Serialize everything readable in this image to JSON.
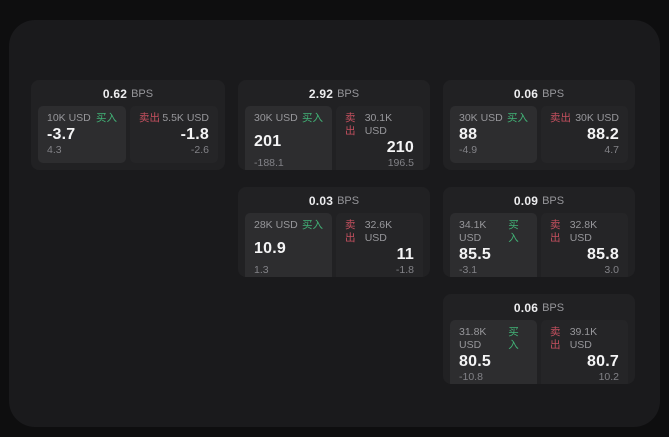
{
  "labels": {
    "bps_unit": "BPS",
    "buy": "买入",
    "sell": "卖出"
  },
  "colors": {
    "buy": "#42b377",
    "sell": "#c5505f",
    "panel_background": "#1a1a1c",
    "card_background": "#212123",
    "page_background": "#0e0e0f"
  },
  "cards": [
    {
      "bps": "0.62",
      "buy": {
        "amount": "10K USD",
        "price": "-3.7",
        "change": "4.3"
      },
      "sell": {
        "amount": "5.5K USD",
        "price": "-1.8",
        "change": "-2.6"
      }
    },
    {
      "bps": "2.92",
      "buy": {
        "amount": "30K USD",
        "price": "201",
        "change": "-188.1"
      },
      "sell": {
        "amount": "30.1K USD",
        "price": "210",
        "change": "196.5"
      }
    },
    {
      "bps": "0.06",
      "buy": {
        "amount": "30K USD",
        "price": "88",
        "change": "-4.9"
      },
      "sell": {
        "amount": "30K USD",
        "price": "88.2",
        "change": "4.7"
      }
    },
    {
      "bps": "0.03",
      "buy": {
        "amount": "28K USD",
        "price": "10.9",
        "change": "1.3"
      },
      "sell": {
        "amount": "32.6K USD",
        "price": "11",
        "change": "-1.8"
      }
    },
    {
      "bps": "0.09",
      "buy": {
        "amount": "34.1K USD",
        "price": "85.5",
        "change": "-3.1"
      },
      "sell": {
        "amount": "32.8K USD",
        "price": "85.8",
        "change": "3.0"
      }
    },
    {
      "bps": "0.06",
      "buy": {
        "amount": "31.8K USD",
        "price": "80.5",
        "change": "-10.8"
      },
      "sell": {
        "amount": "39.1K USD",
        "price": "80.7",
        "change": "10.2"
      }
    }
  ]
}
